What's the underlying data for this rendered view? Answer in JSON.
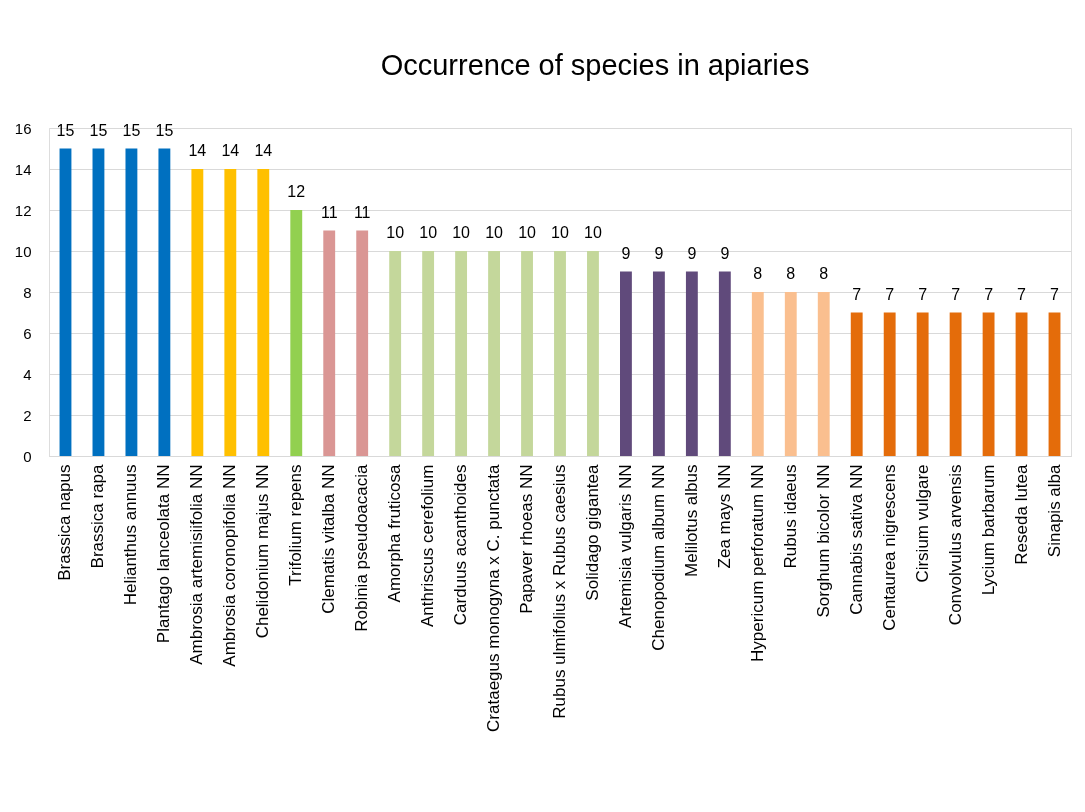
{
  "chart_data": {
    "type": "bar",
    "title": "Occurrence of species in apiaries",
    "categories": [
      "Brassica napus",
      "Brassica rapa",
      "Helianthus annuus",
      "Plantago lanceolata NN",
      "Ambrosia artemisiifolia NN",
      "Ambrosia coronopifolia NN",
      "Chelidonium majus NN",
      "Trifolium repens",
      "Clematis vitalba NN",
      "Robinia pseudoacacia",
      "Amorpha fruticosa",
      "Anthriscus cerefolium",
      "Carduus acanthoides",
      "Crataegus monogyna x C. punctata",
      "Papaver rhoeas NN",
      "Rubus ulmifolius x Rubus caesius",
      "Solidago gigantea",
      "Artemisia vulgaris NN",
      "Chenopodium album NN",
      "Melilotus albus",
      "Zea mays NN",
      "Hypericum perforatum NN",
      "Rubus idaeus",
      "Sorghum bicolor NN",
      "Cannabis sativa NN",
      "Centaurea nigrescens",
      "Cirsium vulgare",
      "Convolvulus arvensis",
      "Lycium barbarum",
      "Reseda lutea",
      "Sinapis alba"
    ],
    "values": [
      15,
      15,
      15,
      15,
      14,
      14,
      14,
      12,
      11,
      11,
      10,
      10,
      10,
      10,
      10,
      10,
      10,
      9,
      9,
      9,
      9,
      8,
      8,
      8,
      7,
      7,
      7,
      7,
      7,
      7,
      7
    ],
    "colors": [
      "#0070c0",
      "#0070c0",
      "#0070c0",
      "#0070c0",
      "#ffc000",
      "#ffc000",
      "#ffc000",
      "#92d050",
      "#da9694",
      "#da9694",
      "#c4d79b",
      "#c4d79b",
      "#c4d79b",
      "#c4d79b",
      "#c4d79b",
      "#c4d79b",
      "#c4d79b",
      "#604a7b",
      "#604a7b",
      "#604a7b",
      "#604a7b",
      "#fabf8f",
      "#fabf8f",
      "#fabf8f",
      "#e46c0a",
      "#e46c0a",
      "#e46c0a",
      "#e46c0a",
      "#e46c0a",
      "#e46c0a",
      "#e46c0a"
    ],
    "ylim": [
      0,
      16
    ],
    "yticks": [
      0,
      2,
      4,
      6,
      8,
      10,
      12,
      14,
      16
    ],
    "grid": "y",
    "data_labels": true
  }
}
